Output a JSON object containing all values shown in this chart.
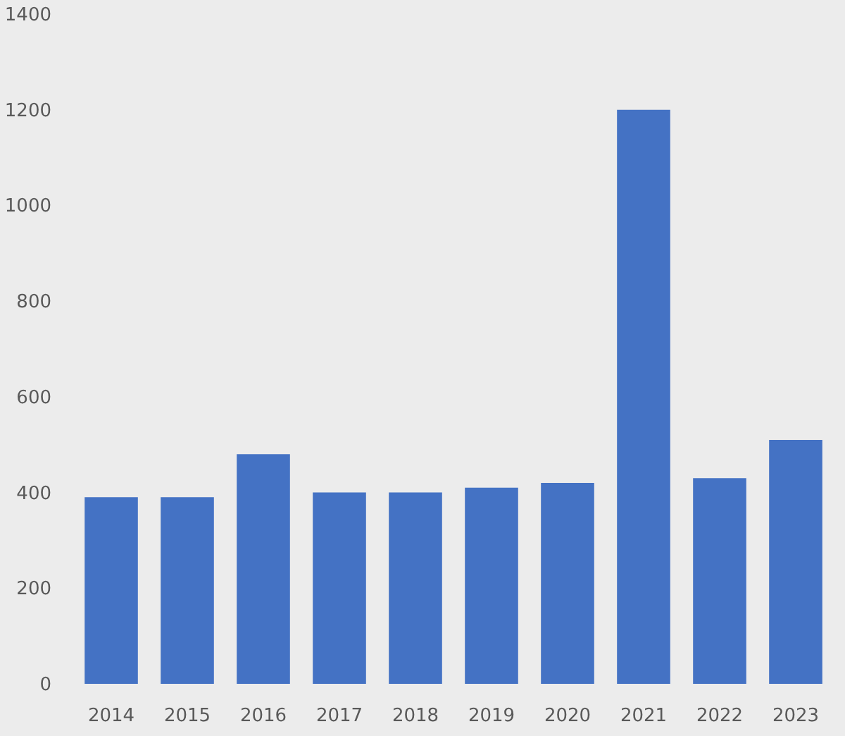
{
  "chart_data": {
    "type": "bar",
    "categories": [
      "2014",
      "2015",
      "2016",
      "2017",
      "2018",
      "2019",
      "2020",
      "2021",
      "2022",
      "2023"
    ],
    "values": [
      390,
      390,
      480,
      400,
      400,
      410,
      420,
      1200,
      430,
      510
    ],
    "color": "#4472c4",
    "ylim": [
      0,
      1400
    ],
    "yticks": [
      0,
      200,
      400,
      600,
      800,
      1000,
      1200,
      1400
    ]
  }
}
